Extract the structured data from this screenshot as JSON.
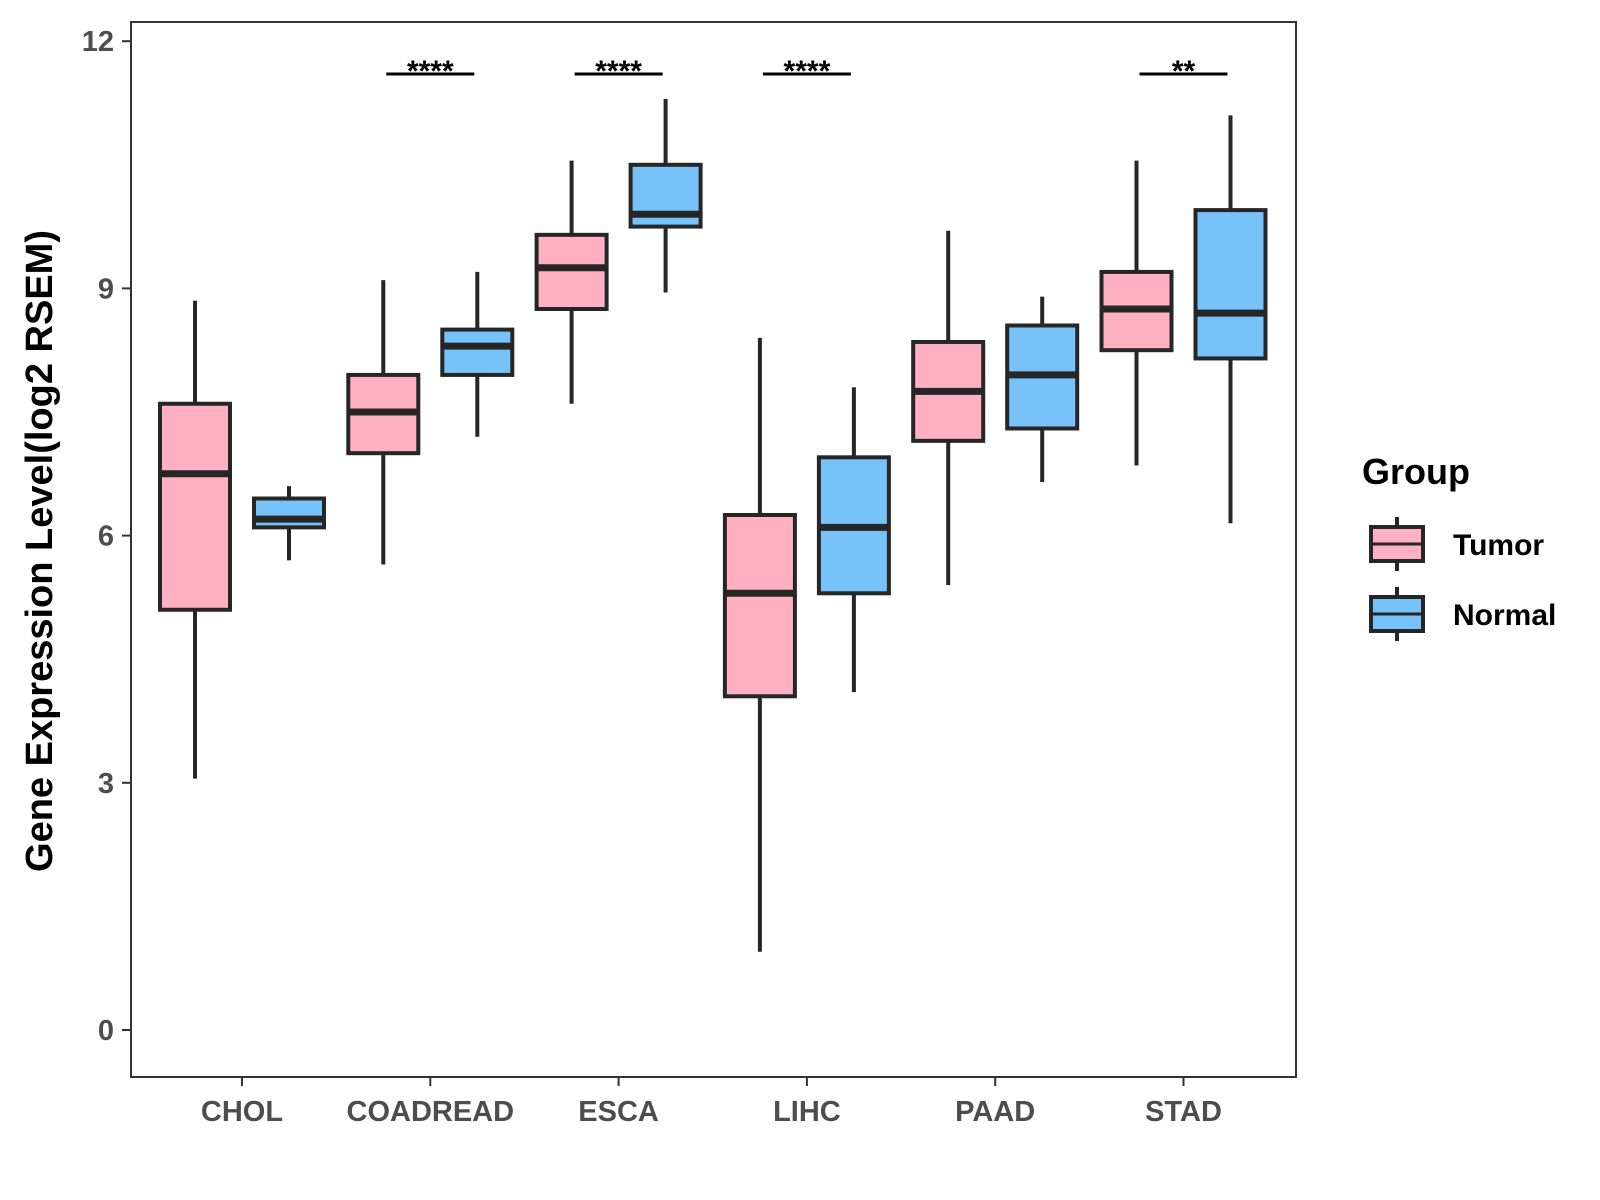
{
  "chart_data": {
    "type": "box",
    "title": "",
    "xlabel": "",
    "ylabel": "Gene Expression Level(log2 RSEM)",
    "ylim": [
      -0.55,
      12.25
    ],
    "yticks": [
      0,
      3,
      6,
      9,
      12
    ],
    "ytick_labels": [
      "0",
      "3",
      "6",
      "9",
      "12"
    ],
    "grid": false,
    "categories": [
      "CHOL",
      "COADREAD",
      "ESCA",
      "LIHC",
      "PAAD",
      "STAD"
    ],
    "series": [
      {
        "name": "Tumor",
        "color": "#FFB0C1",
        "boxes": [
          {
            "whisker_low": 3.05,
            "q1": 5.1,
            "median": 6.75,
            "q3": 7.6,
            "whisker_high": 8.85
          },
          {
            "whisker_low": 5.65,
            "q1": 7.0,
            "median": 7.5,
            "q3": 7.95,
            "whisker_high": 9.1
          },
          {
            "whisker_low": 7.6,
            "q1": 8.75,
            "median": 9.25,
            "q3": 9.65,
            "whisker_high": 10.55
          },
          {
            "whisker_low": 0.95,
            "q1": 4.05,
            "median": 5.3,
            "q3": 6.25,
            "whisker_high": 8.4
          },
          {
            "whisker_low": 5.4,
            "q1": 7.15,
            "median": 7.75,
            "q3": 8.35,
            "whisker_high": 9.7
          },
          {
            "whisker_low": 6.85,
            "q1": 8.25,
            "median": 8.75,
            "q3": 9.2,
            "whisker_high": 10.55
          }
        ]
      },
      {
        "name": "Normal",
        "color": "#77C2F8",
        "boxes": [
          {
            "whisker_low": 5.7,
            "q1": 6.1,
            "median": 6.2,
            "q3": 6.45,
            "whisker_high": 6.6
          },
          {
            "whisker_low": 7.2,
            "q1": 7.95,
            "median": 8.3,
            "q3": 8.5,
            "whisker_high": 9.2
          },
          {
            "whisker_low": 8.95,
            "q1": 9.75,
            "median": 9.9,
            "q3": 10.5,
            "whisker_high": 11.3
          },
          {
            "whisker_low": 4.1,
            "q1": 5.3,
            "median": 6.1,
            "q3": 6.95,
            "whisker_high": 7.8
          },
          {
            "whisker_low": 6.65,
            "q1": 7.3,
            "median": 7.95,
            "q3": 8.55,
            "whisker_high": 8.9
          },
          {
            "whisker_low": 6.15,
            "q1": 8.15,
            "median": 8.7,
            "q3": 9.95,
            "whisker_high": 11.1
          }
        ]
      }
    ],
    "significance": [
      {
        "category": "CHOL",
        "label": ""
      },
      {
        "category": "COADREAD",
        "label": "****"
      },
      {
        "category": "ESCA",
        "label": "****"
      },
      {
        "category": "LIHC",
        "label": "****"
      },
      {
        "category": "PAAD",
        "label": ""
      },
      {
        "category": "STAD",
        "label": "**"
      }
    ],
    "legend": {
      "title": "Group",
      "position": "right",
      "entries": [
        "Tumor",
        "Normal"
      ]
    }
  }
}
